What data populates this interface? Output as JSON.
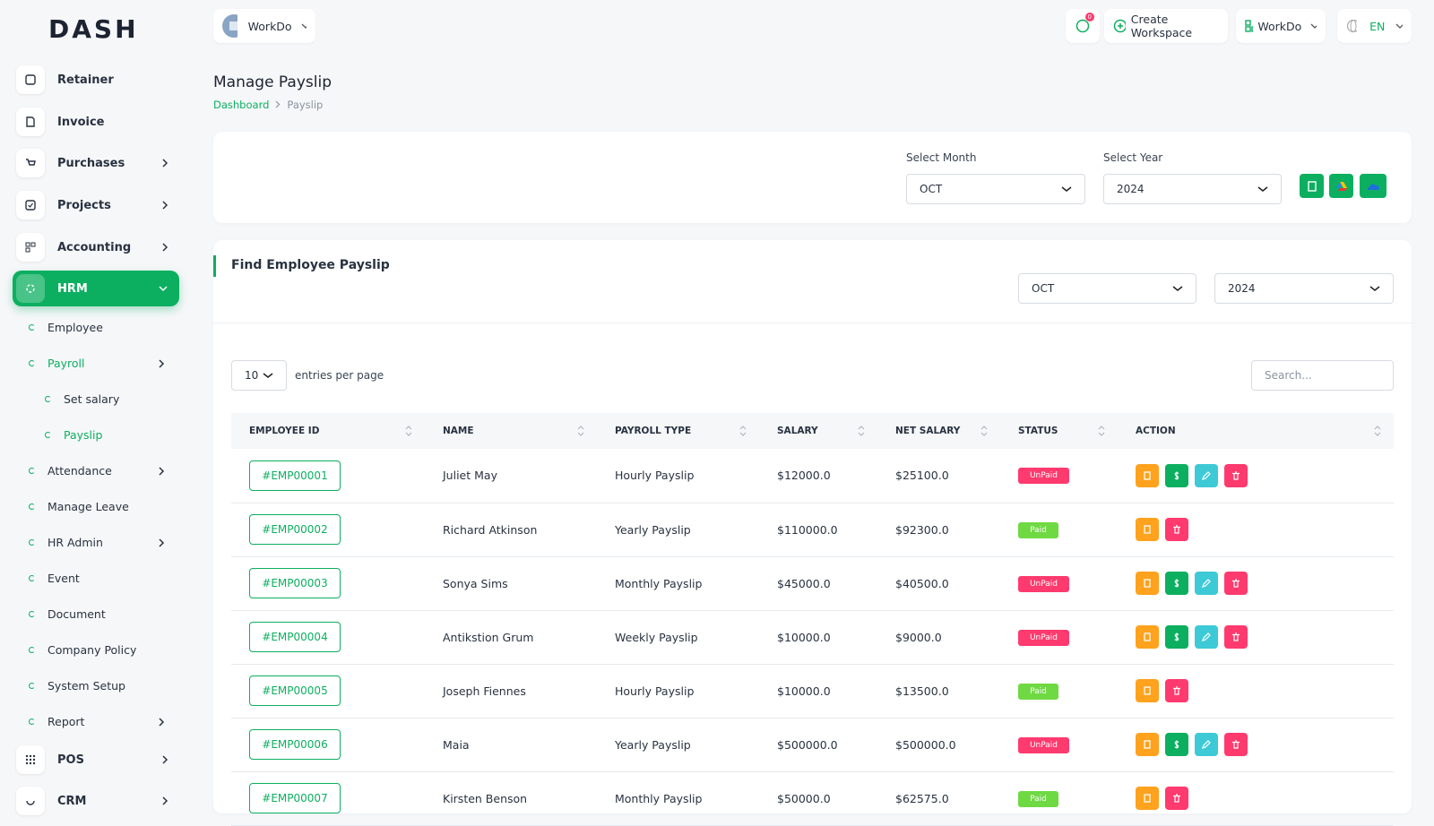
{
  "logo": "DASH",
  "header": {
    "workspace": "WorkDo",
    "notifications": "0",
    "create": "Create Workspace",
    "company": "WorkDo",
    "language": "EN"
  },
  "sidebar": {
    "main": [
      "Retainer",
      "Invoice",
      "Purchases",
      "Projects",
      "Accounting",
      "HRM"
    ],
    "hrm_menu": [
      "Employee",
      "Payroll",
      "Attendance",
      "Manage Leave",
      "HR Admin",
      "Event",
      "Document",
      "Company Policy",
      "System Setup",
      "Report"
    ],
    "payroll_menu": [
      "Set salary",
      "Payslip"
    ],
    "more": [
      "POS",
      "CRM"
    ]
  },
  "page": {
    "title": "Manage Payslip",
    "breadcrumb": [
      "Dashboard",
      "Payslip"
    ]
  },
  "filters": {
    "month_label": "Select Month",
    "month": "OCT",
    "year_label": "Select Year",
    "year": "2024"
  },
  "find": {
    "title": "Find Employee Payslip",
    "month": "OCT",
    "year": "2024"
  },
  "table": {
    "page_size": "10",
    "page_size_label": "entries per page",
    "search_placeholder": "Search...",
    "columns": [
      "EMPLOYEE ID",
      "NAME",
      "PAYROLL TYPE",
      "SALARY",
      "NET SALARY",
      "STATUS",
      "ACTION"
    ],
    "rows": [
      [
        "#EMP00001",
        "Juliet May",
        "Hourly Payslip",
        "$12000.0",
        "$25100.0",
        "UnPaid"
      ],
      [
        "#EMP00002",
        "Richard Atkinson",
        "Yearly Payslip",
        "$110000.0",
        "$92300.0",
        "Paid"
      ],
      [
        "#EMP00003",
        "Sonya Sims",
        "Monthly Payslip",
        "$45000.0",
        "$40500.0",
        "UnPaid"
      ],
      [
        "#EMP00004",
        "Antikstion Grum",
        "Weekly Payslip",
        "$10000.0",
        "$9000.0",
        "UnPaid"
      ],
      [
        "#EMP00005",
        "Joseph Fiennes",
        "Hourly Payslip",
        "$10000.0",
        "$13500.0",
        "Paid"
      ],
      [
        "#EMP00006",
        "Maia",
        "Yearly Payslip",
        "$500000.0",
        "$500000.0",
        "UnPaid"
      ],
      [
        "#EMP00007",
        "Kirsten Benson",
        "Monthly Payslip",
        "$50000.0",
        "$62575.0",
        "Paid"
      ]
    ]
  }
}
